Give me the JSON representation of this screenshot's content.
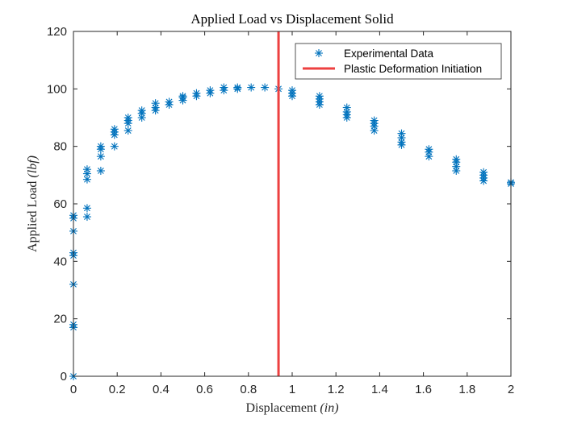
{
  "chart_data": {
    "type": "scatter",
    "title": "Applied Load vs Displacement Solid",
    "xlabel_main": "Displacement ",
    "xlabel_unit": "(in)",
    "ylabel_main": "Applied Load ",
    "ylabel_unit": "(lbf)",
    "xlim": [
      0,
      2
    ],
    "ylim": [
      0,
      120
    ],
    "x_ticks": [
      0,
      0.2,
      0.4,
      0.6,
      0.8,
      1,
      1.2,
      1.4,
      1.6,
      1.8,
      2
    ],
    "x_tick_labels": [
      "0",
      "0.2",
      "0.4",
      "0.6",
      "0.8",
      "1",
      "1.2",
      "1.4",
      "1.6",
      "1.8",
      "2"
    ],
    "y_ticks": [
      0,
      20,
      40,
      60,
      80,
      100,
      120
    ],
    "y_tick_labels": [
      "0",
      "20",
      "40",
      "60",
      "80",
      "100",
      "120"
    ],
    "grid": false,
    "legend_position": "top-right",
    "series": [
      {
        "name": "Experimental Data",
        "marker": "asterisk",
        "color": "#0072BD",
        "points": [
          [
            0,
            0
          ],
          [
            0,
            17
          ],
          [
            0,
            18
          ],
          [
            0,
            32
          ],
          [
            0,
            42
          ],
          [
            0,
            43
          ],
          [
            0,
            50.5
          ],
          [
            0,
            55
          ],
          [
            0,
            56
          ],
          [
            0.0625,
            55.5
          ],
          [
            0.0625,
            58.5
          ],
          [
            0.0625,
            68.5
          ],
          [
            0.0625,
            70.5
          ],
          [
            0.0625,
            72
          ],
          [
            0.125,
            71.5
          ],
          [
            0.125,
            76.5
          ],
          [
            0.125,
            79
          ],
          [
            0.125,
            80
          ],
          [
            0.1875,
            80
          ],
          [
            0.1875,
            84
          ],
          [
            0.1875,
            85
          ],
          [
            0.1875,
            86
          ],
          [
            0.25,
            85.5
          ],
          [
            0.25,
            88
          ],
          [
            0.25,
            89
          ],
          [
            0.25,
            90
          ],
          [
            0.3125,
            90
          ],
          [
            0.3125,
            91.5
          ],
          [
            0.3125,
            92.5
          ],
          [
            0.375,
            92.5
          ],
          [
            0.375,
            93.5
          ],
          [
            0.375,
            95
          ],
          [
            0.4375,
            94.5
          ],
          [
            0.4375,
            95.5
          ],
          [
            0.5,
            96
          ],
          [
            0.5,
            97
          ],
          [
            0.5,
            97.5
          ],
          [
            0.5625,
            97.5
          ],
          [
            0.5625,
            98.5
          ],
          [
            0.625,
            98.5
          ],
          [
            0.625,
            99.5
          ],
          [
            0.6875,
            99.5
          ],
          [
            0.6875,
            100.5
          ],
          [
            0.75,
            100
          ],
          [
            0.75,
            100.5
          ],
          [
            0.8125,
            100.5
          ],
          [
            0.875,
            100.5
          ],
          [
            0.9375,
            100
          ],
          [
            1.0,
            97.5
          ],
          [
            1.0,
            98.5
          ],
          [
            1.0,
            99.5
          ],
          [
            1.125,
            94.5
          ],
          [
            1.125,
            95.5
          ],
          [
            1.125,
            96.5
          ],
          [
            1.125,
            97.5
          ],
          [
            1.25,
            90
          ],
          [
            1.25,
            91
          ],
          [
            1.25,
            92
          ],
          [
            1.25,
            93.5
          ],
          [
            1.375,
            85.5
          ],
          [
            1.375,
            87
          ],
          [
            1.375,
            88
          ],
          [
            1.375,
            89
          ],
          [
            1.5,
            80.5
          ],
          [
            1.5,
            81.5
          ],
          [
            1.5,
            83
          ],
          [
            1.5,
            84.5
          ],
          [
            1.625,
            76.5
          ],
          [
            1.625,
            78
          ],
          [
            1.625,
            79
          ],
          [
            1.75,
            71.5
          ],
          [
            1.75,
            73
          ],
          [
            1.75,
            74.5
          ],
          [
            1.75,
            75.5
          ],
          [
            1.875,
            68
          ],
          [
            1.875,
            69
          ],
          [
            1.875,
            70
          ],
          [
            1.875,
            71
          ],
          [
            2.0,
            67
          ],
          [
            2.0,
            67.5
          ]
        ]
      },
      {
        "name": "Plastic Deformation Initiation",
        "type": "vertical-line",
        "x": 0.9375,
        "color": "#ED4040"
      }
    ]
  }
}
